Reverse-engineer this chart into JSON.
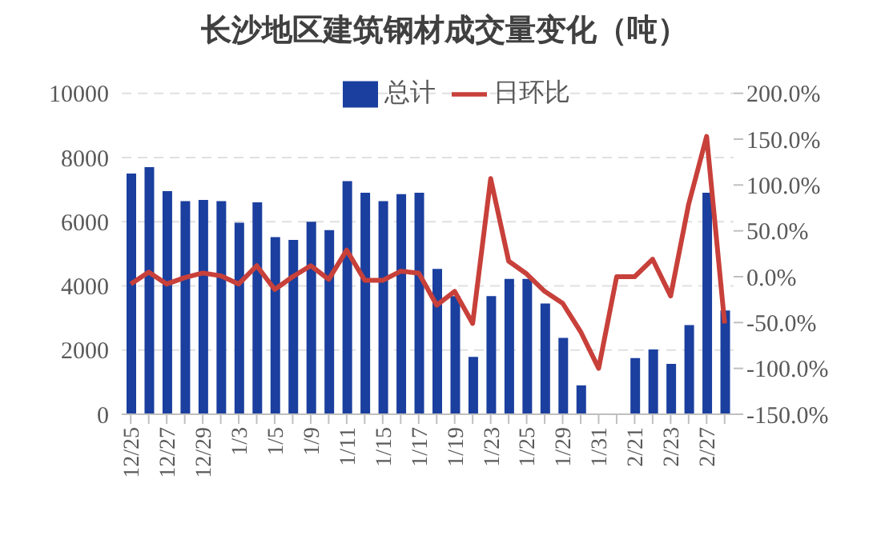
{
  "chart_data": {
    "type": "bar",
    "title": "长沙地区建筑钢材成交量变化（吨）",
    "categories": [
      "12/25",
      null,
      "12/27",
      null,
      "12/29",
      null,
      "1/3",
      null,
      "1/5",
      null,
      "1/9",
      null,
      "1/11",
      null,
      "1/15",
      null,
      "1/17",
      null,
      "1/19",
      null,
      "1/23",
      null,
      "1/25",
      null,
      "1/29",
      null,
      "1/31",
      null,
      "2/21",
      null,
      "2/23",
      null,
      "2/27",
      null
    ],
    "series": [
      {
        "name": "总计",
        "color": "#1a3f9e",
        "values": [
          7500,
          7700,
          6950,
          6640,
          6680,
          6640,
          5970,
          6600,
          5520,
          5430,
          6000,
          5740,
          7260,
          6900,
          6640,
          6860,
          6900,
          4530,
          3680,
          1790,
          3680,
          4220,
          4220,
          3450,
          2380,
          900,
          0,
          0,
          1750,
          2020,
          1570,
          2780,
          6900,
          3230
        ]
      },
      {
        "name": "日环比",
        "type": "line",
        "axis": "y2",
        "color": "#c8403a",
        "values": [
          -8,
          5,
          -8,
          -1,
          4,
          1,
          -8,
          12,
          -14,
          0,
          12,
          -3,
          29,
          -4,
          -4,
          6,
          4,
          -31,
          -16,
          -51,
          107,
          17,
          3,
          -16,
          -29,
          -60,
          -100,
          0,
          0,
          19,
          -21,
          79,
          153,
          -51
        ]
      }
    ],
    "ylim": [
      0,
      10000
    ],
    "yticks": [
      0,
      2000,
      4000,
      6000,
      8000,
      10000
    ],
    "y2lim": [
      -150,
      200
    ],
    "y2ticks": [
      {
        "value": -150,
        "label": "-150.0%"
      },
      {
        "value": -100,
        "label": "-100.0%"
      },
      {
        "value": -50,
        "label": "-50.0%"
      },
      {
        "value": 0,
        "label": "0.0%"
      },
      {
        "value": 50,
        "label": "50.0%"
      },
      {
        "value": 100,
        "label": "100.0%"
      },
      {
        "value": 150,
        "label": "150.0%"
      },
      {
        "value": 200,
        "label": "200.0%"
      }
    ],
    "grid": "y",
    "legend": "top"
  }
}
